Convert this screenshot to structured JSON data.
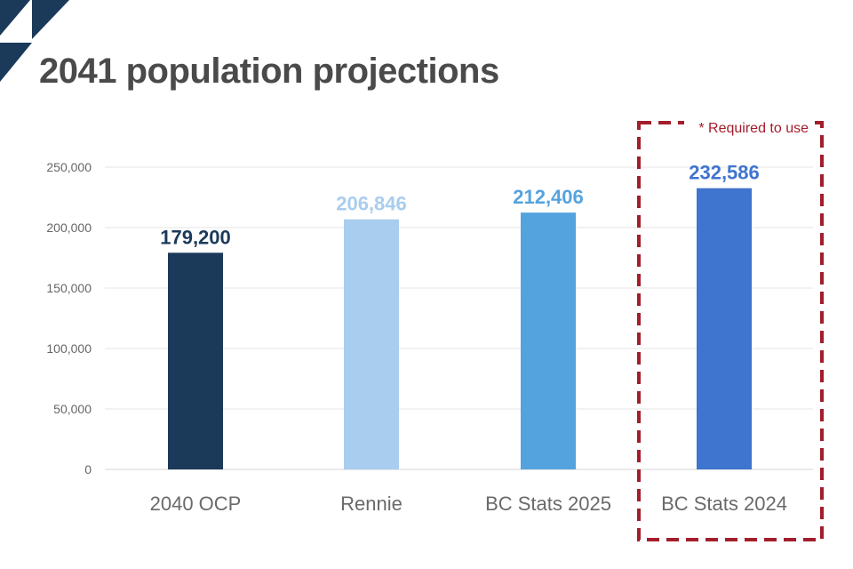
{
  "slide": {
    "title": "2041 population projections",
    "note": "* Required to use",
    "colors": {
      "logo_dark": "#1b3a5a",
      "title": "#4a4a4a",
      "gridline": "#e6e6e6",
      "highlight_border": "#a31d2b"
    }
  },
  "chart_data": {
    "type": "bar",
    "title": "2041 population projections",
    "xlabel": "",
    "ylabel": "",
    "categories": [
      "2040 OCP",
      "Rennie",
      "BC Stats 2025",
      "BC Stats 2024"
    ],
    "values": [
      179200,
      206846,
      212406,
      232586
    ],
    "value_labels": [
      "179,200",
      "206,846",
      "212,406",
      "232,586"
    ],
    "bar_colors": [
      "#1b3a5a",
      "#a9cdee",
      "#55a3de",
      "#3f74cf"
    ],
    "label_colors": [
      "#1b3a5a",
      "#a9cdee",
      "#55a3de",
      "#3f74cf"
    ],
    "ylim": [
      0,
      250000
    ],
    "yticks": [
      0,
      50000,
      100000,
      150000,
      200000,
      250000
    ],
    "ytick_labels": [
      "0",
      "50,000",
      "100,000",
      "150,000",
      "200,000",
      "250,000"
    ],
    "grid": true,
    "legend": "none",
    "highlighted_category": "BC Stats 2024"
  }
}
